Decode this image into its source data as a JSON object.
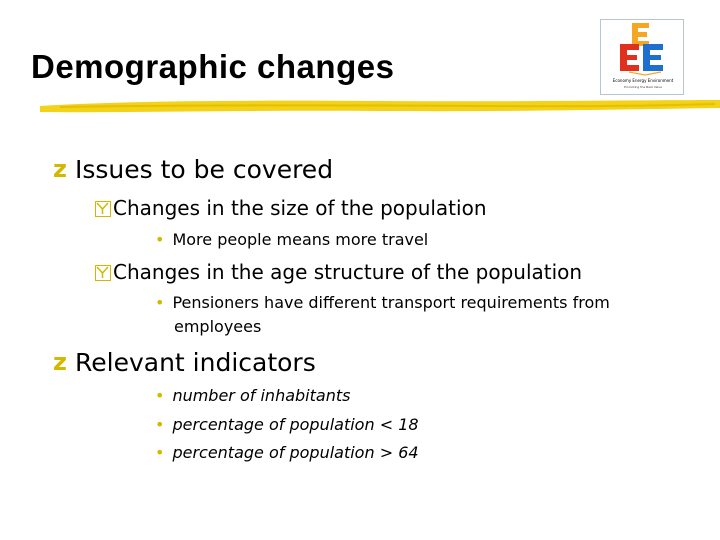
{
  "slide": {
    "title": "Demographic changes",
    "logo": {
      "caption": "Economy Energy Environment",
      "subcaption": "Promoting the Best Value"
    },
    "sections": [
      {
        "heading": "Issues to be covered",
        "subitems": [
          {
            "text": "Changes in the size of the population",
            "points": [
              "More people means more travel"
            ]
          },
          {
            "text": "Changes in the age structure of the population",
            "points": [
              "Pensioners  have different transport requirements from",
              "employees"
            ]
          }
        ]
      },
      {
        "heading": "Relevant indicators",
        "points": [
          "number of inhabitants",
          "percentage of population < 18",
          "percentage of population > 64"
        ]
      }
    ],
    "colors": {
      "accent": "#d4b800",
      "logo_red": "#e0301e",
      "logo_orange": "#f5a623",
      "logo_blue": "#1f6fd1"
    }
  }
}
